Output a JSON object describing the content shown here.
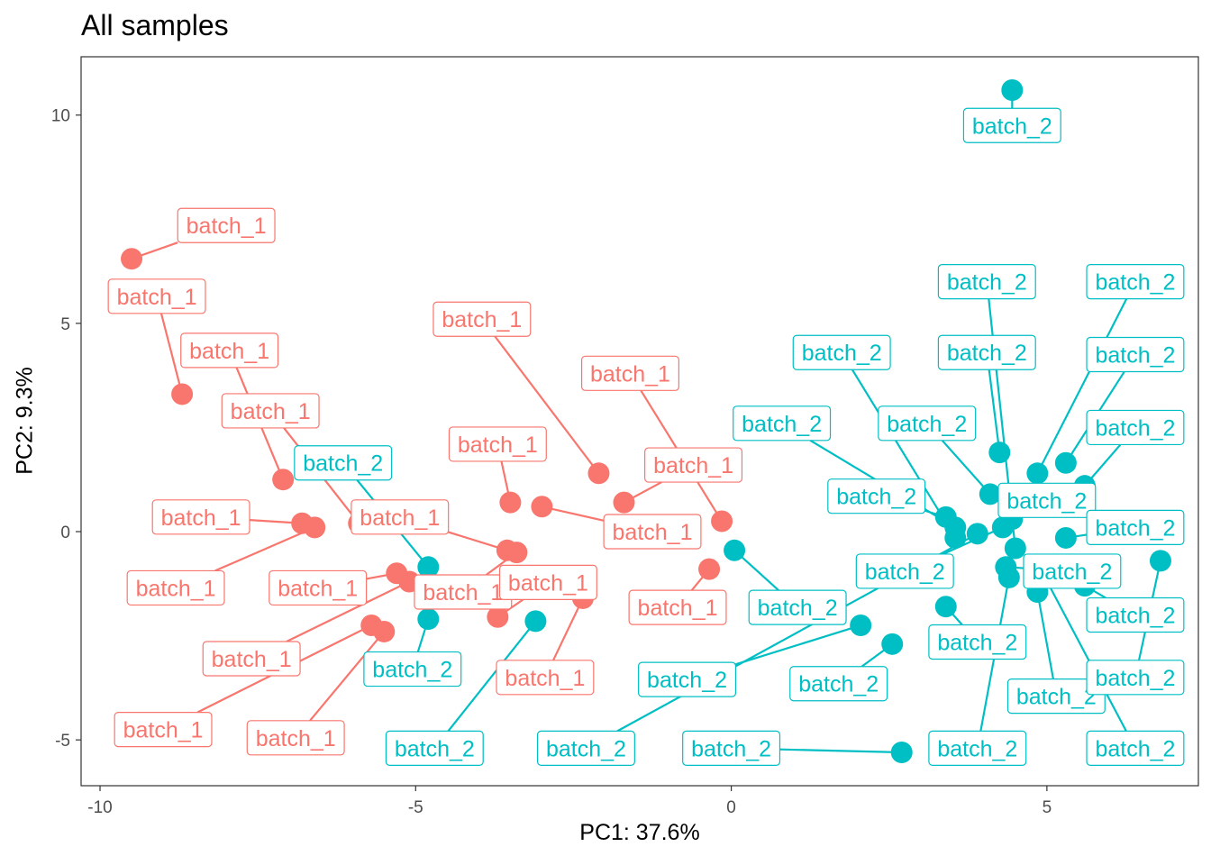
{
  "chart_data": {
    "type": "scatter",
    "title": "All samples",
    "xlabel": "PC1: 37.6%",
    "ylabel": "PC2: 9.3%",
    "xlim": [
      -10.3,
      7.4
    ],
    "ylim": [
      -6.1,
      11.4
    ],
    "xticks": [
      -10,
      -5,
      0,
      5
    ],
    "xtick_labels": [
      "-10",
      "-5",
      "0",
      "5"
    ],
    "yticks": [
      -5,
      0,
      5,
      10
    ],
    "ytick_labels": [
      "-5",
      "0",
      "5",
      "10"
    ],
    "grid": false,
    "legend": "none",
    "colors": {
      "batch_1": "#F8766D",
      "batch_2": "#00BFC4"
    },
    "series": [
      {
        "name": "batch_1",
        "points": [
          {
            "x": -9.5,
            "y": 6.55,
            "label": "batch_1",
            "lx": -8.0,
            "ly": 7.35
          },
          {
            "x": -8.7,
            "y": 3.3,
            "label": "batch_1",
            "lx": -9.1,
            "ly": 5.65
          },
          {
            "x": -7.1,
            "y": 1.25,
            "label": "batch_1",
            "lx": -7.95,
            "ly": 4.35
          },
          {
            "x": -5.9,
            "y": 0.2,
            "label": "batch_1",
            "lx": -7.3,
            "ly": 2.9
          },
          {
            "x": -6.8,
            "y": 0.2,
            "label": "batch_1",
            "lx": -8.4,
            "ly": 0.35
          },
          {
            "x": -6.6,
            "y": 0.1,
            "label": "batch_1",
            "lx": -8.8,
            "ly": -1.35
          },
          {
            "x": -5.3,
            "y": -1.0,
            "label": "batch_1",
            "lx": -6.55,
            "ly": -1.35
          },
          {
            "x": -5.1,
            "y": -1.2,
            "label": "batch_1",
            "lx": -7.6,
            "ly": -3.05
          },
          {
            "x": -5.7,
            "y": -2.25,
            "label": "batch_1",
            "lx": -9.0,
            "ly": -4.75
          },
          {
            "x": -5.5,
            "y": -2.4,
            "label": "batch_1",
            "lx": -6.9,
            "ly": -4.95
          },
          {
            "x": -3.5,
            "y": 0.7,
            "label": "batch_1",
            "lx": -3.7,
            "ly": 2.1
          },
          {
            "x": -3.0,
            "y": 0.6,
            "label": "batch_1",
            "lx": -1.25,
            "ly": 0.0
          },
          {
            "x": -2.1,
            "y": 1.4,
            "label": "batch_1",
            "lx": -3.95,
            "ly": 5.1
          },
          {
            "x": -1.7,
            "y": 0.7,
            "label": "batch_1",
            "lx": -0.6,
            "ly": 1.6
          },
          {
            "x": -0.15,
            "y": 0.25,
            "label": "batch_1",
            "lx": -1.6,
            "ly": 3.8
          },
          {
            "x": -3.55,
            "y": -0.45,
            "label": "batch_1",
            "lx": -5.25,
            "ly": 0.35
          },
          {
            "x": -3.4,
            "y": -0.5,
            "label": "batch_1",
            "lx": -4.25,
            "ly": -1.45
          },
          {
            "x": -3.7,
            "y": -2.05,
            "label": "batch_1",
            "lx": -2.9,
            "ly": -1.22
          },
          {
            "x": -2.35,
            "y": -1.6,
            "label": "batch_1",
            "lx": -2.95,
            "ly": -3.5
          },
          {
            "x": -0.35,
            "y": -0.9,
            "label": "batch_1",
            "lx": -0.85,
            "ly": -1.82
          }
        ]
      },
      {
        "name": "batch_2",
        "points": [
          {
            "x": 4.45,
            "y": 10.6,
            "label": "batch_2",
            "lx": 4.45,
            "ly": 9.75
          },
          {
            "x": -4.8,
            "y": -0.85,
            "label": "batch_2",
            "lx": -6.15,
            "ly": 1.65
          },
          {
            "x": -4.8,
            "y": -2.1,
            "label": "batch_2",
            "lx": -5.05,
            "ly": -3.3
          },
          {
            "x": -3.1,
            "y": -2.15,
            "label": "batch_2",
            "lx": -4.7,
            "ly": -5.2
          },
          {
            "x": 0.05,
            "y": -0.45,
            "label": "batch_2",
            "lx": 1.05,
            "ly": -1.82
          },
          {
            "x": 2.05,
            "y": -2.25,
            "label": "batch_2",
            "lx": -0.7,
            "ly": -3.55
          },
          {
            "x": 2.55,
            "y": -2.7,
            "label": "batch_2",
            "lx": 1.7,
            "ly": -3.65
          },
          {
            "x": 2.7,
            "y": -5.3,
            "label": "batch_2",
            "lx": 0.0,
            "ly": -5.2
          },
          {
            "x": 3.4,
            "y": 0.35,
            "label": "batch_2",
            "lx": 2.3,
            "ly": 0.85
          },
          {
            "x": 3.55,
            "y": 0.1,
            "label": "batch_2",
            "lx": 0.8,
            "ly": 2.6
          },
          {
            "x": 3.55,
            "y": -0.15,
            "label": "batch_2",
            "lx": 1.75,
            "ly": 4.3
          },
          {
            "x": 3.4,
            "y": -1.8,
            "label": "batch_2",
            "lx": 3.9,
            "ly": -2.65
          },
          {
            "x": 3.9,
            "y": -0.05,
            "label": "batch_2",
            "lx": -2.3,
            "ly": -5.2
          },
          {
            "x": 4.1,
            "y": 0.9,
            "label": "batch_2",
            "lx": 3.1,
            "ly": 2.6
          },
          {
            "x": 4.25,
            "y": 1.9,
            "label": "batch_2",
            "lx": 4.05,
            "ly": 4.3
          },
          {
            "x": 4.3,
            "y": 0.1,
            "label": "batch_2",
            "lx": 2.75,
            "ly": -0.95
          },
          {
            "x": 4.45,
            "y": 0.3,
            "label": "batch_2",
            "lx": 5.0,
            "ly": 0.75
          },
          {
            "x": 4.5,
            "y": -0.4,
            "label": "batch_2",
            "lx": 4.05,
            "ly": 6.0
          },
          {
            "x": 4.35,
            "y": -0.85,
            "label": "batch_2",
            "lx": 5.4,
            "ly": -0.95
          },
          {
            "x": 4.4,
            "y": -1.1,
            "label": "batch_2",
            "lx": 3.9,
            "ly": -5.2
          },
          {
            "x": 4.85,
            "y": 1.4,
            "label": "batch_2",
            "lx": 6.4,
            "ly": 6.0
          },
          {
            "x": 4.85,
            "y": -1.45,
            "label": "batch_2",
            "lx": 5.15,
            "ly": -3.95
          },
          {
            "x": 5.3,
            "y": 1.65,
            "label": "batch_2",
            "lx": 6.4,
            "ly": 4.25
          },
          {
            "x": 5.3,
            "y": -0.15,
            "label": "batch_2",
            "lx": 6.4,
            "ly": 0.1
          },
          {
            "x": 5.6,
            "y": 1.1,
            "label": "batch_2",
            "lx": 6.4,
            "ly": 2.5
          },
          {
            "x": 5.6,
            "y": -1.3,
            "label": "batch_2",
            "lx": 6.4,
            "ly": -2.0
          },
          {
            "x": 6.8,
            "y": -0.7,
            "label": "batch_2",
            "lx": 6.4,
            "ly": -3.5
          },
          {
            "x": 4.9,
            "y": -0.9,
            "label": "batch_2",
            "lx": 6.4,
            "ly": -5.2
          }
        ]
      }
    ]
  }
}
